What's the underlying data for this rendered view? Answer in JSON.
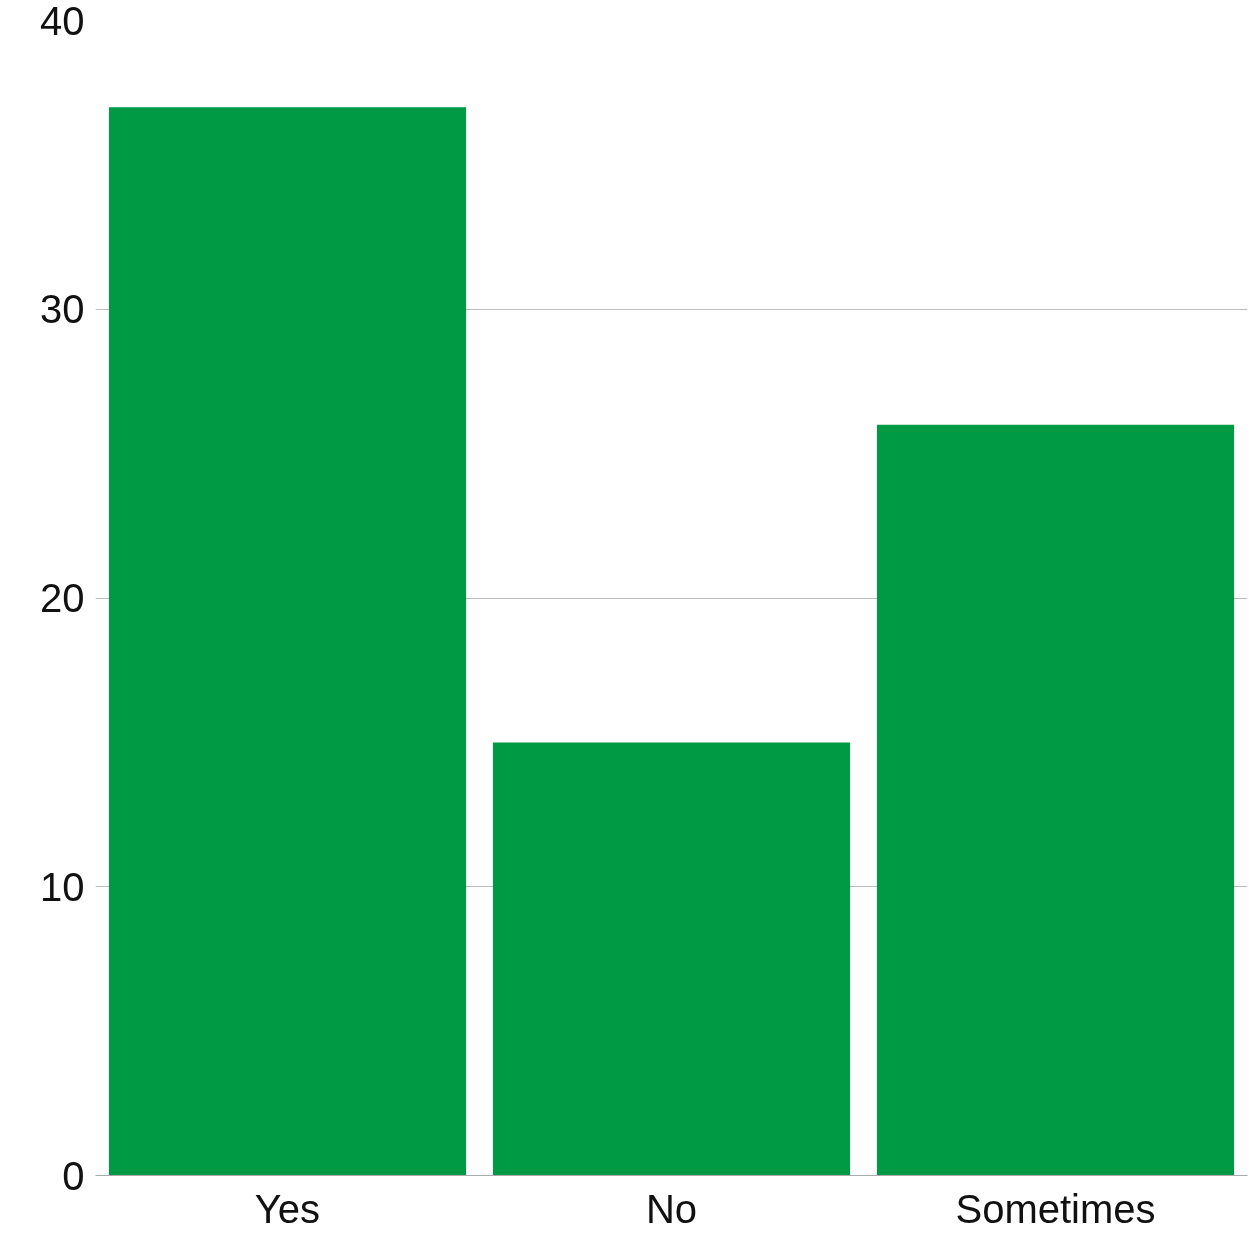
{
  "chart_data": {
    "type": "bar",
    "categories": [
      "Yes",
      "No",
      "Sometimes"
    ],
    "values": [
      37,
      15,
      26
    ],
    "color": "#009944",
    "ylim": [
      0,
      40
    ],
    "yticks": [
      0,
      10,
      20,
      30,
      40
    ],
    "grid": "y"
  }
}
